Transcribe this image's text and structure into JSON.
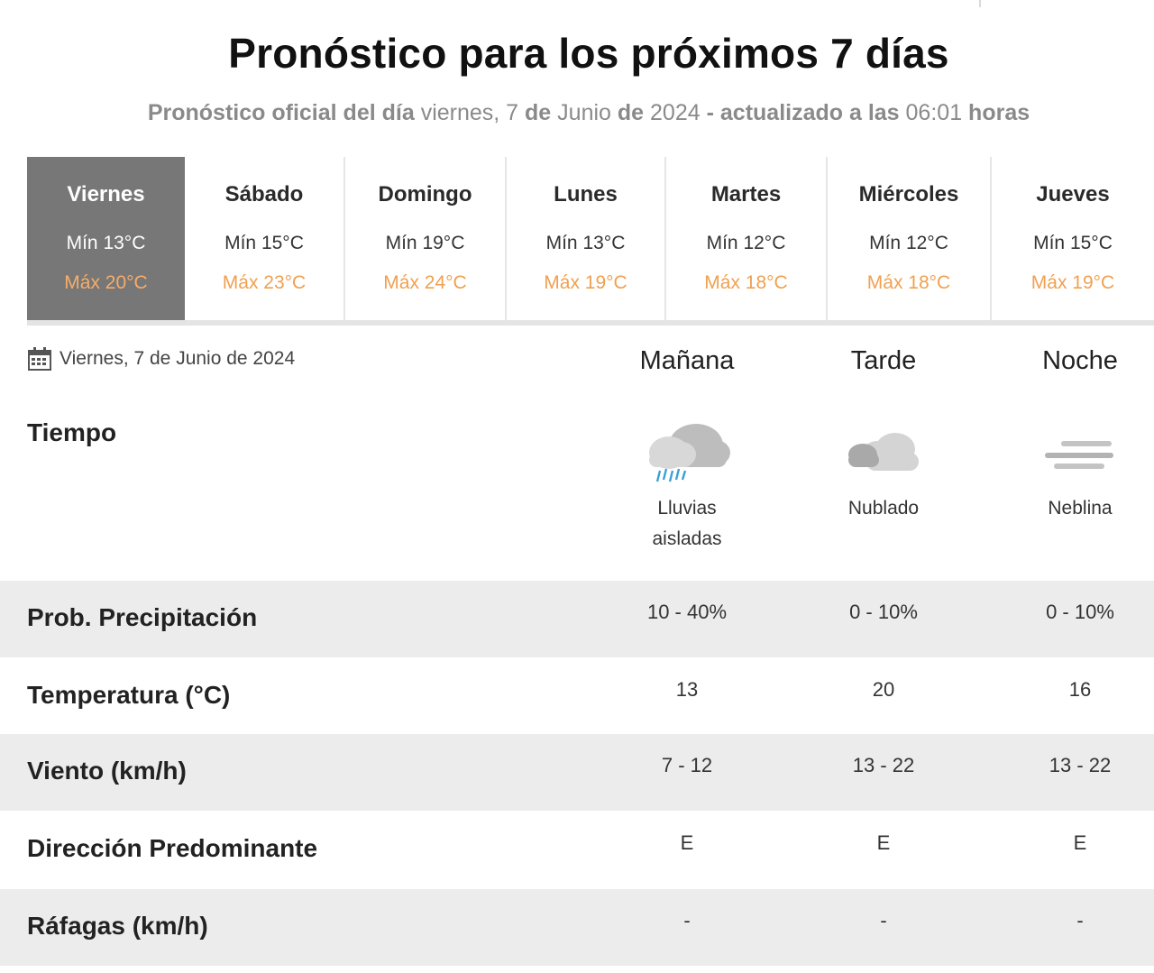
{
  "header": {
    "title": "Pronóstico para los próximos 7 días",
    "subtitle_prefix": "Pronóstico oficial del día",
    "subtitle_date": "viernes, 7",
    "subtitle_de1": "de",
    "subtitle_month": "Junio",
    "subtitle_de2": "de",
    "subtitle_year": "2024",
    "subtitle_updated": "- actualizado a las",
    "subtitle_time": "06:01",
    "subtitle_suffix": "horas"
  },
  "days": [
    {
      "name": "Viernes",
      "min": "Mín 13°C",
      "max": "Máx 20°C",
      "active": true
    },
    {
      "name": "Sábado",
      "min": "Mín 15°C",
      "max": "Máx 23°C"
    },
    {
      "name": "Domingo",
      "min": "Mín 19°C",
      "max": "Máx 24°C"
    },
    {
      "name": "Lunes",
      "min": "Mín 13°C",
      "max": "Máx 19°C"
    },
    {
      "name": "Martes",
      "min": "Mín 12°C",
      "max": "Máx 18°C"
    },
    {
      "name": "Miércoles",
      "min": "Mín 12°C",
      "max": "Máx 18°C"
    },
    {
      "name": "Jueves",
      "min": "Mín 15°C",
      "max": "Máx 19°C"
    }
  ],
  "detail": {
    "date": "Viernes, 7 de Junio de 2024",
    "date_icon": "calendar-icon",
    "periods": [
      "Mañana",
      "Tarde",
      "Noche"
    ],
    "weather_label": "Tiempo",
    "weather": [
      {
        "icon": "rain-cloud-icon",
        "desc_line1": "Lluvias",
        "desc_line2": "aisladas"
      },
      {
        "icon": "cloud-icon",
        "desc_line1": "Nublado",
        "desc_line2": ""
      },
      {
        "icon": "fog-icon",
        "desc_line1": "Neblina",
        "desc_line2": ""
      }
    ],
    "rows": [
      {
        "label": "Prob. Precipitación",
        "values": [
          "10 - 40%",
          "0 - 10%",
          "0 - 10%"
        ]
      },
      {
        "label": "Temperatura (°C)",
        "values": [
          "13",
          "20",
          "16"
        ]
      },
      {
        "label": "Viento (km/h)",
        "values": [
          "7 - 12",
          "13 - 22",
          "13 - 22"
        ]
      },
      {
        "label": "Dirección Predominante",
        "values": [
          "E",
          "E",
          "E"
        ]
      },
      {
        "label": "Ráfagas (km/h)",
        "values": [
          "-",
          "-",
          "-"
        ]
      }
    ]
  },
  "colors": {
    "active_day_bg": "#777777",
    "max_temp": "#f0a050",
    "band_gray": "#ececec",
    "subtitle": "#8a8a8a"
  }
}
